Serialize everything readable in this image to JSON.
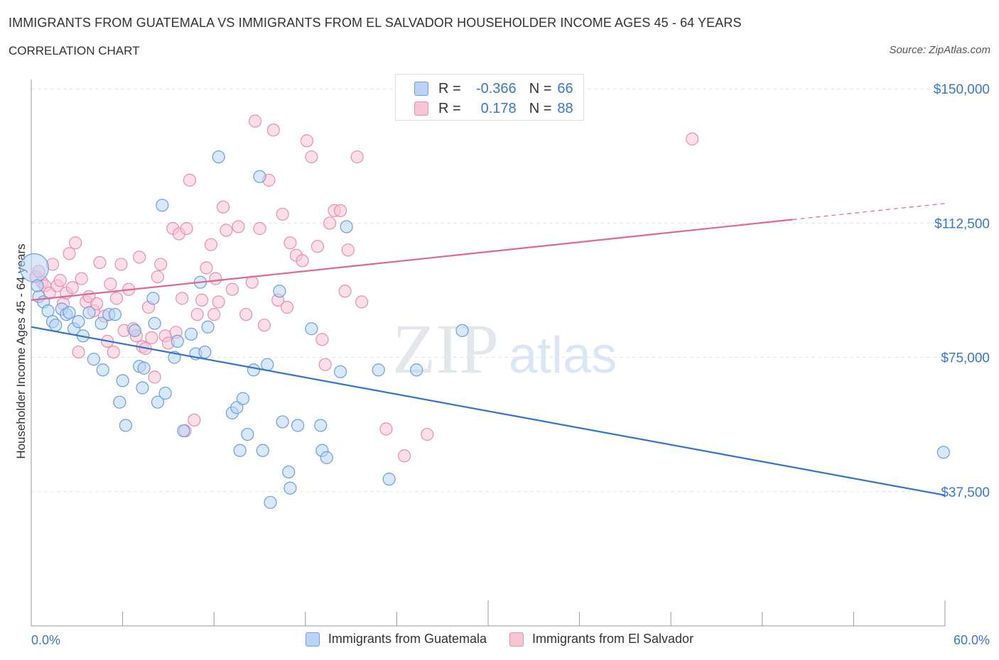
{
  "title": "IMMIGRANTS FROM GUATEMALA VS IMMIGRANTS FROM EL SALVADOR HOUSEHOLDER INCOME AGES 45 - 64 YEARS",
  "subtitle": "CORRELATION CHART",
  "source": "Source: ZipAtlas.com",
  "watermark": {
    "zip": "ZIP",
    "atlas": "atlas"
  },
  "colors": {
    "blue_fill": "#b8d3f5",
    "blue_stroke": "#6a9fe0",
    "blue_line": "#2f74d0",
    "pink_fill": "#f8c3d3",
    "pink_stroke": "#e88fab",
    "pink_line": "#e2678f",
    "tick_label": "#3a78c9",
    "grid": "#dde3ea"
  },
  "legend_top": {
    "rows": [
      {
        "r_label": "R =",
        "r_value": "-0.366",
        "n_label": "N =",
        "n_value": "66"
      },
      {
        "r_label": "R =",
        "r_value": "0.178",
        "n_label": "N =",
        "n_value": "88"
      }
    ]
  },
  "legend_bottom": [
    "Immigrants from Guatemala",
    "Immigrants from El Salvador"
  ],
  "chart_data": {
    "type": "scatter",
    "xlabel": "",
    "ylabel": "Householder Income Ages 45 - 64 years",
    "xlim": [
      0,
      60
    ],
    "ylim": [
      0,
      155000
    ],
    "x_tick_labels": {
      "0": "0.0%",
      "60": "60.0%"
    },
    "y_ticks": [
      37500,
      75000,
      112500,
      150000
    ],
    "y_tick_labels": [
      "$37,500",
      "$75,000",
      "$112,500",
      "$150,000"
    ],
    "grid": "horizontal dashed",
    "series": [
      {
        "name": "Immigrants from Guatemala",
        "color": "blue",
        "trend": {
          "x": [
            0,
            60
          ],
          "y": [
            83500,
            36500
          ]
        },
        "points": [
          [
            0.2,
            100000
          ],
          [
            0.5,
            92000
          ],
          [
            0.8,
            90500
          ],
          [
            1.1,
            88000
          ],
          [
            1.4,
            85000
          ],
          [
            1.6,
            84000
          ],
          [
            2.0,
            88500
          ],
          [
            2.3,
            87000
          ],
          [
            2.5,
            87500
          ],
          [
            2.8,
            83000
          ],
          [
            3.1,
            85000
          ],
          [
            3.4,
            81000
          ],
          [
            3.8,
            87500
          ],
          [
            4.1,
            74500
          ],
          [
            4.6,
            84500
          ],
          [
            4.7,
            71500
          ],
          [
            5.1,
            87000
          ],
          [
            5.5,
            87000
          ],
          [
            5.8,
            62500
          ],
          [
            6.0,
            68500
          ],
          [
            6.2,
            56000
          ],
          [
            6.8,
            82500
          ],
          [
            7.1,
            72500
          ],
          [
            7.3,
            66500
          ],
          [
            7.4,
            72000
          ],
          [
            8.0,
            91500
          ],
          [
            8.1,
            84500
          ],
          [
            8.3,
            62500
          ],
          [
            8.6,
            117500
          ],
          [
            8.8,
            65000
          ],
          [
            9.4,
            75000
          ],
          [
            9.6,
            79500
          ],
          [
            10.0,
            54500
          ],
          [
            10.5,
            81500
          ],
          [
            10.8,
            76000
          ],
          [
            11.1,
            96000
          ],
          [
            11.4,
            76500
          ],
          [
            11.6,
            83500
          ],
          [
            12.3,
            131000
          ],
          [
            13.2,
            59500
          ],
          [
            13.5,
            61000
          ],
          [
            13.7,
            49000
          ],
          [
            13.9,
            63500
          ],
          [
            14.2,
            53500
          ],
          [
            14.6,
            71500
          ],
          [
            15.0,
            125500
          ],
          [
            15.2,
            49000
          ],
          [
            15.5,
            73000
          ],
          [
            16.3,
            93500
          ],
          [
            16.5,
            57000
          ],
          [
            16.9,
            43000
          ],
          [
            17.0,
            38500
          ],
          [
            17.5,
            56000
          ],
          [
            18.4,
            83000
          ],
          [
            19.0,
            56000
          ],
          [
            19.1,
            49000
          ],
          [
            19.4,
            47000
          ],
          [
            20.3,
            71000
          ],
          [
            20.7,
            111500
          ],
          [
            22.8,
            71500
          ],
          [
            23.5,
            41000
          ],
          [
            25.3,
            71500
          ],
          [
            28.3,
            82500
          ],
          [
            59.9,
            48500
          ],
          [
            0.4,
            95000
          ],
          [
            15.7,
            34500
          ]
        ]
      },
      {
        "name": "Immigrants from El Salvador",
        "color": "pink",
        "trend": {
          "x": [
            0,
            50
          ],
          "y": [
            91000,
            113500
          ]
        },
        "trend_dashed": {
          "x": [
            50,
            60
          ],
          "y": [
            113500,
            118000
          ]
        },
        "points": [
          [
            0.3,
            97500
          ],
          [
            0.5,
            99000
          ],
          [
            0.7,
            96000
          ],
          [
            0.9,
            95000
          ],
          [
            1.2,
            93000
          ],
          [
            1.4,
            101000
          ],
          [
            1.7,
            95000
          ],
          [
            1.9,
            96500
          ],
          [
            2.1,
            90000
          ],
          [
            2.3,
            93000
          ],
          [
            2.5,
            104000
          ],
          [
            2.7,
            94500
          ],
          [
            2.9,
            107000
          ],
          [
            3.1,
            76500
          ],
          [
            3.3,
            97000
          ],
          [
            3.6,
            90500
          ],
          [
            3.8,
            92000
          ],
          [
            4.1,
            88000
          ],
          [
            4.3,
            90000
          ],
          [
            4.5,
            101500
          ],
          [
            4.8,
            86500
          ],
          [
            5.0,
            79500
          ],
          [
            5.2,
            95500
          ],
          [
            5.4,
            76500
          ],
          [
            5.6,
            91500
          ],
          [
            5.9,
            101000
          ],
          [
            6.1,
            82500
          ],
          [
            6.4,
            94000
          ],
          [
            6.7,
            83000
          ],
          [
            6.9,
            81000
          ],
          [
            7.1,
            103000
          ],
          [
            7.3,
            78000
          ],
          [
            7.5,
            77500
          ],
          [
            7.7,
            89000
          ],
          [
            7.9,
            80500
          ],
          [
            8.1,
            69500
          ],
          [
            8.3,
            97500
          ],
          [
            8.5,
            101000
          ],
          [
            8.8,
            81000
          ],
          [
            9.0,
            79000
          ],
          [
            9.3,
            111000
          ],
          [
            9.5,
            82000
          ],
          [
            9.7,
            109500
          ],
          [
            9.9,
            91500
          ],
          [
            10.2,
            111000
          ],
          [
            10.4,
            124500
          ],
          [
            10.7,
            57500
          ],
          [
            10.9,
            87000
          ],
          [
            11.2,
            91000
          ],
          [
            11.5,
            100000
          ],
          [
            11.8,
            106500
          ],
          [
            12.0,
            87000
          ],
          [
            12.3,
            90500
          ],
          [
            12.6,
            117000
          ],
          [
            12.8,
            110500
          ],
          [
            13.2,
            94000
          ],
          [
            13.6,
            111500
          ],
          [
            14.1,
            87000
          ],
          [
            14.5,
            96000
          ],
          [
            14.7,
            141000
          ],
          [
            15.0,
            111000
          ],
          [
            15.3,
            84000
          ],
          [
            15.6,
            124500
          ],
          [
            15.9,
            138500
          ],
          [
            16.2,
            91000
          ],
          [
            16.5,
            115000
          ],
          [
            16.8,
            89000
          ],
          [
            17.0,
            107000
          ],
          [
            17.4,
            103500
          ],
          [
            17.8,
            102000
          ],
          [
            18.1,
            135500
          ],
          [
            18.4,
            131000
          ],
          [
            18.8,
            106000
          ],
          [
            19.1,
            80000
          ],
          [
            19.3,
            73000
          ],
          [
            19.6,
            112500
          ],
          [
            19.9,
            116000
          ],
          [
            20.3,
            116000
          ],
          [
            20.6,
            93500
          ],
          [
            20.8,
            105000
          ],
          [
            21.4,
            131000
          ],
          [
            21.7,
            90500
          ],
          [
            23.3,
            55000
          ],
          [
            24.5,
            47500
          ],
          [
            26.0,
            53500
          ],
          [
            43.4,
            136000
          ],
          [
            10.1,
            54500
          ],
          [
            12.1,
            97000
          ]
        ]
      }
    ]
  }
}
